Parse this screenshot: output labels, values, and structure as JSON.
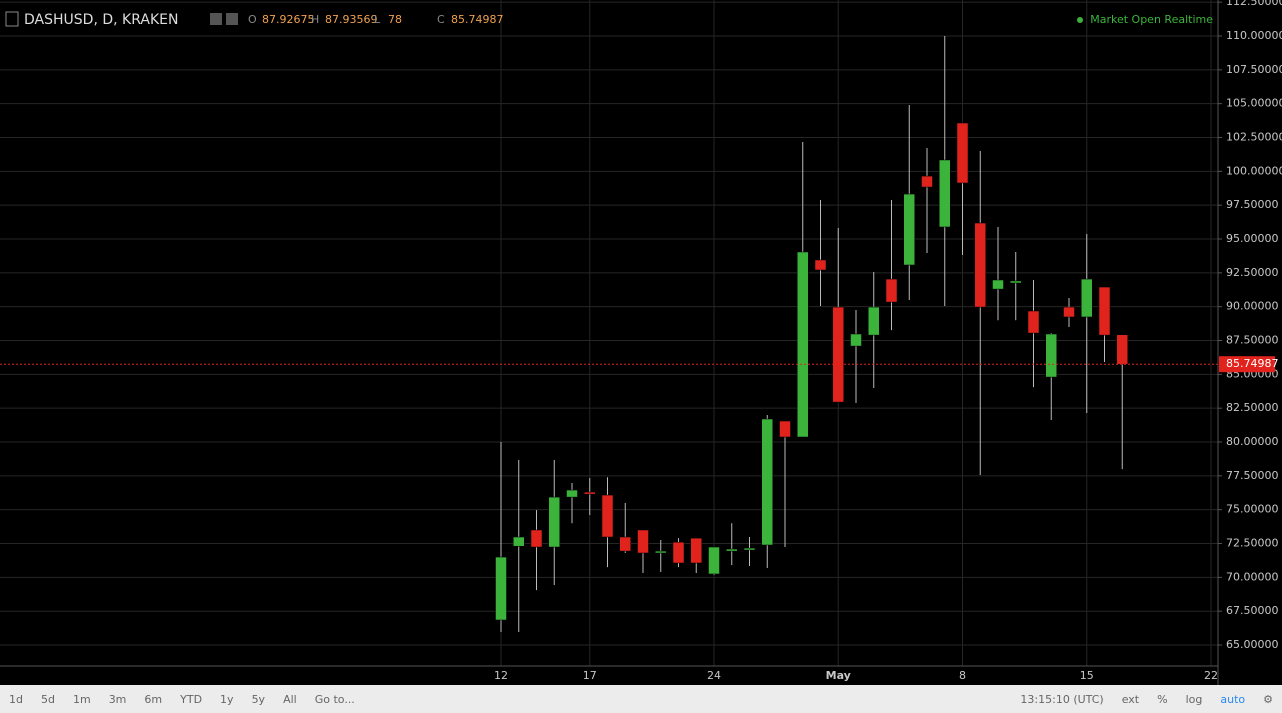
{
  "header": {
    "symbol": "DASHUSD, D, KRAKEN",
    "ohlc_labels": [
      "O",
      "H",
      "L",
      "C"
    ],
    "status": "Market Open Realtime"
  },
  "chart_data": {
    "type": "candlestick",
    "categories": [
      "12",
      null,
      null,
      null,
      null,
      "17",
      null,
      null,
      null,
      null,
      null,
      null,
      "24",
      null,
      null,
      null,
      null,
      null,
      null,
      "May",
      null,
      null,
      null,
      null,
      null,
      null,
      "8",
      null,
      null,
      null,
      null,
      null,
      null,
      "15",
      null,
      null,
      null,
      null,
      null,
      null,
      "22"
    ],
    "open": [
      66.85,
      72.3,
      73.5,
      72.24,
      75.93,
      76.3,
      76.08,
      72.98,
      73.5,
      71.8,
      72.6,
      72.9,
      70.25,
      71.94,
      72.02,
      72.39,
      81.55,
      80.37,
      93.45,
      89.97,
      87.09,
      87.9,
      92.04,
      93.08,
      99.65,
      95.89,
      103.57,
      96.18,
      91.3,
      91.75,
      89.68,
      84.8,
      89.97,
      89.24,
      91.45,
      87.92675,
      null,
      null,
      null,
      null,
      null
    ],
    "high": [
      80.0,
      78.67,
      74.97,
      78.67,
      76.97,
      77.34,
      77.4,
      75.5,
      73.5,
      72.76,
      72.9,
      72.9,
      72.24,
      74.0,
      72.98,
      82.0,
      81.55,
      102.17,
      97.88,
      95.81,
      89.75,
      92.56,
      97.88,
      104.9,
      101.72,
      110.0,
      103.57,
      101.5,
      95.89,
      94.04,
      91.97,
      88.05,
      90.64,
      95.37,
      91.45,
      87.93569,
      null,
      null,
      null,
      null,
      null
    ],
    "low": [
      65.96,
      65.96,
      69.06,
      69.43,
      74.0,
      74.6,
      70.76,
      71.8,
      70.32,
      70.4,
      70.76,
      70.32,
      70.17,
      70.91,
      70.84,
      70.69,
      72.24,
      80.37,
      90.05,
      82.95,
      82.88,
      83.99,
      88.27,
      90.49,
      93.97,
      90.05,
      93.82,
      77.56,
      89.0,
      89.0,
      84.06,
      81.63,
      88.5,
      82.14,
      85.91,
      78.0,
      null,
      null,
      null,
      null,
      null
    ],
    "close": [
      71.5,
      72.98,
      72.24,
      75.93,
      76.45,
      76.15,
      72.98,
      71.94,
      71.8,
      71.94,
      71.06,
      71.06,
      72.24,
      72.09,
      72.16,
      81.7,
      80.37,
      94.04,
      92.71,
      82.95,
      87.98,
      89.97,
      90.34,
      98.32,
      98.84,
      100.84,
      99.14,
      89.97,
      91.97,
      91.9,
      88.05,
      87.98,
      89.24,
      92.04,
      87.9,
      85.74987,
      null,
      null,
      null,
      null,
      null
    ],
    "up_color": "#3cb43c",
    "down_color": "#e0231c",
    "ylim": [
      63.45,
      112.66
    ],
    "yticks": [
      {
        "value": 65,
        "label": "65.00000"
      },
      {
        "value": 67.5,
        "label": "67.50000"
      },
      {
        "value": 70,
        "label": "70.00000"
      },
      {
        "value": 72.5,
        "label": "72.50000"
      },
      {
        "value": 75,
        "label": "75.00000"
      },
      {
        "value": 77.5,
        "label": "77.50000"
      },
      {
        "value": 80,
        "label": "80.00000"
      },
      {
        "value": 82.5,
        "label": "82.50000"
      },
      {
        "value": 85,
        "label": "85.00000"
      },
      {
        "value": 87.5,
        "label": "87.50000"
      },
      {
        "value": 90,
        "label": "90.00000"
      },
      {
        "value": 92.5,
        "label": "92.50000"
      },
      {
        "value": 95,
        "label": "95.00000"
      },
      {
        "value": 97.5,
        "label": "97.50000"
      },
      {
        "value": 100,
        "label": "100.00000"
      },
      {
        "value": 102.5,
        "label": "102.50000"
      },
      {
        "value": 105,
        "label": "105.00000"
      },
      {
        "value": 107.5,
        "label": "107.50000"
      },
      {
        "value": 110,
        "label": "110.00000"
      },
      {
        "value": 112.5,
        "label": "112.50000"
      }
    ],
    "grid": true
  },
  "toolbar": {
    "ranges": [
      "1d",
      "5d",
      "1m",
      "3m",
      "6m",
      "YTD",
      "1y",
      "5y",
      "All"
    ],
    "goto": "Go to...",
    "clock": "13:15:10 (UTC)",
    "options": [
      "ext",
      "%",
      "log",
      "auto"
    ]
  }
}
